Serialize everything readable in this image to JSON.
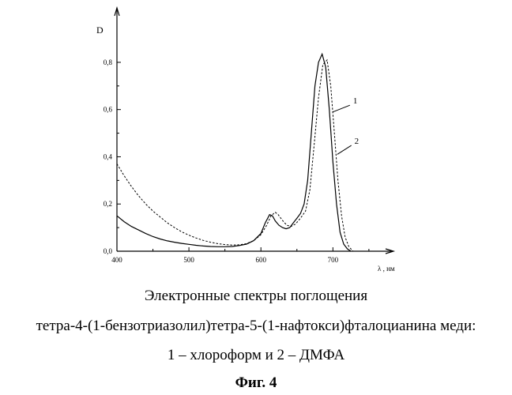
{
  "chart_data": {
    "type": "line",
    "ylabel": "D",
    "xlabel": "λ , нм",
    "xlim": [
      400,
      760
    ],
    "ylim": [
      0,
      0.88
    ],
    "xticks": [
      "400",
      "500",
      "600",
      "700"
    ],
    "yticks": [
      "0,0",
      "0,2",
      "0,4",
      "0,6",
      "0,8"
    ],
    "series": [
      {
        "name": "1",
        "style": "solid",
        "points": [
          [
            400,
            0.15
          ],
          [
            410,
            0.125
          ],
          [
            420,
            0.105
          ],
          [
            430,
            0.09
          ],
          [
            440,
            0.075
          ],
          [
            450,
            0.062
          ],
          [
            460,
            0.052
          ],
          [
            470,
            0.044
          ],
          [
            480,
            0.038
          ],
          [
            490,
            0.033
          ],
          [
            500,
            0.029
          ],
          [
            510,
            0.025
          ],
          [
            520,
            0.022
          ],
          [
            530,
            0.02
          ],
          [
            540,
            0.019
          ],
          [
            550,
            0.019
          ],
          [
            560,
            0.02
          ],
          [
            570,
            0.024
          ],
          [
            580,
            0.03
          ],
          [
            590,
            0.045
          ],
          [
            600,
            0.075
          ],
          [
            606,
            0.12
          ],
          [
            612,
            0.155
          ],
          [
            616,
            0.15
          ],
          [
            620,
            0.128
          ],
          [
            625,
            0.11
          ],
          [
            630,
            0.1
          ],
          [
            635,
            0.095
          ],
          [
            640,
            0.1
          ],
          [
            645,
            0.12
          ],
          [
            650,
            0.14
          ],
          [
            655,
            0.16
          ],
          [
            660,
            0.2
          ],
          [
            665,
            0.3
          ],
          [
            670,
            0.5
          ],
          [
            675,
            0.7
          ],
          [
            680,
            0.8
          ],
          [
            685,
            0.835
          ],
          [
            690,
            0.78
          ],
          [
            695,
            0.6
          ],
          [
            700,
            0.38
          ],
          [
            705,
            0.2
          ],
          [
            710,
            0.08
          ],
          [
            715,
            0.03
          ],
          [
            720,
            0.01
          ],
          [
            725,
            0.0
          ]
        ]
      },
      {
        "name": "2",
        "style": "dashed",
        "points": [
          [
            400,
            0.37
          ],
          [
            410,
            0.32
          ],
          [
            420,
            0.275
          ],
          [
            430,
            0.235
          ],
          [
            440,
            0.2
          ],
          [
            450,
            0.17
          ],
          [
            460,
            0.145
          ],
          [
            470,
            0.12
          ],
          [
            480,
            0.1
          ],
          [
            490,
            0.082
          ],
          [
            500,
            0.068
          ],
          [
            510,
            0.056
          ],
          [
            520,
            0.046
          ],
          [
            530,
            0.038
          ],
          [
            540,
            0.032
          ],
          [
            550,
            0.028
          ],
          [
            560,
            0.026
          ],
          [
            570,
            0.027
          ],
          [
            580,
            0.032
          ],
          [
            590,
            0.045
          ],
          [
            600,
            0.07
          ],
          [
            608,
            0.11
          ],
          [
            614,
            0.15
          ],
          [
            620,
            0.165
          ],
          [
            624,
            0.155
          ],
          [
            630,
            0.13
          ],
          [
            636,
            0.11
          ],
          [
            642,
            0.105
          ],
          [
            648,
            0.115
          ],
          [
            655,
            0.14
          ],
          [
            662,
            0.17
          ],
          [
            668,
            0.26
          ],
          [
            674,
            0.45
          ],
          [
            680,
            0.65
          ],
          [
            686,
            0.79
          ],
          [
            692,
            0.81
          ],
          [
            697,
            0.7
          ],
          [
            702,
            0.5
          ],
          [
            707,
            0.3
          ],
          [
            712,
            0.15
          ],
          [
            717,
            0.06
          ],
          [
            722,
            0.02
          ],
          [
            728,
            0.0
          ]
        ]
      }
    ],
    "curve_labels": [
      {
        "text": "1",
        "x": 728,
        "y": 0.625,
        "line_to": [
          700,
          0.59
        ]
      },
      {
        "text": "2",
        "x": 730,
        "y": 0.455,
        "line_to": [
          706,
          0.41
        ]
      }
    ]
  },
  "caption": {
    "line1": "Электронные спектры поглощения",
    "line2": "тетра-4-(1-бензотриазолил)тетра-5-(1-нафтокси)фталоцианина меди:",
    "line3": "1 – хлороформ и 2 – ДМФА",
    "fig": "Фиг. 4"
  }
}
